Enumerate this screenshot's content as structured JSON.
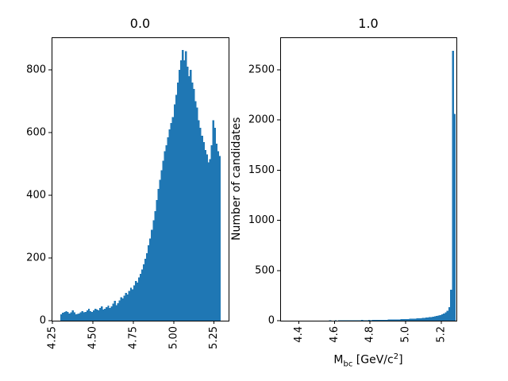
{
  "figure": {
    "background_color": "#ffffff",
    "bar_color": "#1f77b4",
    "spine_color": "#000000"
  },
  "chart_data": [
    {
      "type": "bar",
      "subtype": "histogram",
      "title": "0.0",
      "xlabel": "",
      "ylabel": "",
      "bin_start": 4.3,
      "bin_width": 0.01,
      "values": [
        20,
        25,
        28,
        31,
        28,
        23,
        26,
        33,
        26,
        20,
        21,
        23,
        26,
        30,
        26,
        28,
        33,
        38,
        31,
        28,
        33,
        38,
        36,
        33,
        40,
        46,
        36,
        38,
        43,
        48,
        41,
        46,
        55,
        63,
        50,
        56,
        65,
        75,
        71,
        80,
        88,
        84,
        95,
        105,
        100,
        113,
        126,
        122,
        138,
        150,
        163,
        180,
        197,
        215,
        240,
        262,
        290,
        320,
        350,
        385,
        420,
        450,
        480,
        510,
        540,
        560,
        585,
        610,
        630,
        650,
        690,
        720,
        760,
        800,
        830,
        863,
        830,
        860,
        810,
        780,
        800,
        760,
        740,
        700,
        680,
        640,
        615,
        590,
        570,
        545,
        530,
        505,
        515,
        560,
        640,
        615,
        565,
        540,
        525
      ],
      "xlim": [
        4.245,
        5.34
      ],
      "ylim": [
        0,
        904
      ],
      "xticks": [
        4.25,
        4.5,
        4.75,
        5.0,
        5.25
      ],
      "xtick_labels": [
        "4.25",
        "4.50",
        "4.75",
        "5.00",
        "5.25"
      ],
      "xtick_rotation": 90,
      "yticks": [
        0,
        200,
        400,
        600,
        800
      ],
      "ytick_labels": [
        "0",
        "200",
        "400",
        "600",
        "800"
      ],
      "bar_color": "#1f77b4",
      "grid": false,
      "legend": null
    },
    {
      "type": "bar",
      "subtype": "histogram",
      "title": "1.0",
      "xlabel": "M_bc [GeV/c^2]",
      "xlabel_parts": {
        "main": "M",
        "sub": "bc",
        "mid": " [GeV/c",
        "sup": "2",
        "close": "]"
      },
      "ylabel": "Number of candidates",
      "bin_start": 4.3,
      "bin_width": 0.01,
      "values": [
        0,
        0,
        0,
        0,
        0,
        0,
        0,
        0,
        0,
        0,
        0,
        0,
        0,
        0,
        0,
        0,
        0,
        0,
        0,
        0,
        1,
        0,
        1,
        1,
        0,
        1,
        1,
        2,
        1,
        1,
        2,
        1,
        2,
        2,
        3,
        2,
        3,
        3,
        2,
        3,
        3,
        4,
        3,
        4,
        5,
        9,
        5,
        4,
        5,
        6,
        5,
        6,
        6,
        7,
        7,
        8,
        7,
        8,
        9,
        9,
        10,
        10,
        11,
        11,
        12,
        13,
        13,
        14,
        15,
        16,
        17,
        17,
        18,
        19,
        20,
        21,
        22,
        23,
        25,
        26,
        28,
        30,
        32,
        34,
        36,
        39,
        42,
        46,
        50,
        56,
        62,
        70,
        82,
        100,
        135,
        310,
        2690,
        2060
      ],
      "xlim": [
        4.295,
        5.285
      ],
      "ylim": [
        0,
        2824
      ],
      "xticks": [
        4.4,
        4.6,
        4.8,
        5.0,
        5.2
      ],
      "xtick_labels": [
        "4.4",
        "4.6",
        "4.8",
        "5.0",
        "5.2"
      ],
      "xtick_rotation": 90,
      "yticks": [
        0,
        500,
        1000,
        1500,
        2000,
        2500
      ],
      "ytick_labels": [
        "0",
        "500",
        "1000",
        "1500",
        "2000",
        "2500"
      ],
      "bar_color": "#1f77b4",
      "grid": false,
      "legend": null
    }
  ]
}
